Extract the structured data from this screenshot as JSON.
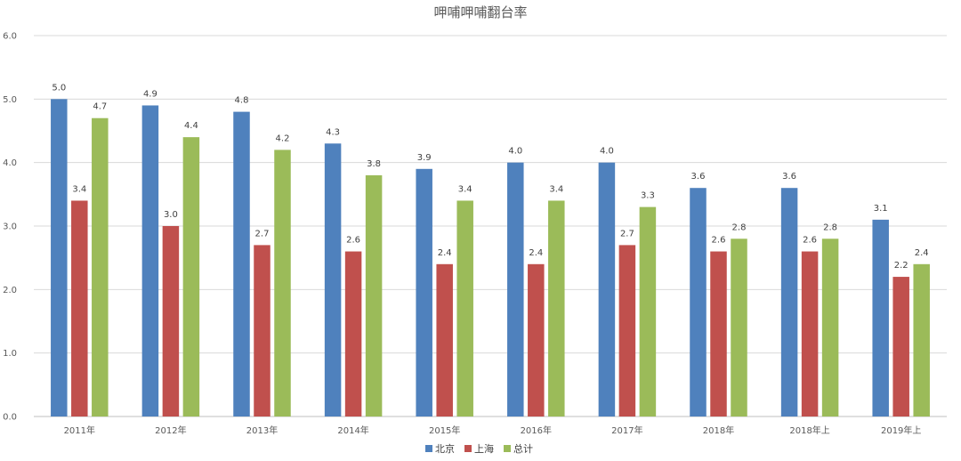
{
  "chart_data": {
    "type": "bar",
    "title": "呷哺呷哺翻台率",
    "categories": [
      "2011年",
      "2012年",
      "2013年",
      "2014年",
      "2015年",
      "2016年",
      "2017年",
      "2018年",
      "2018年上",
      "2019年上"
    ],
    "series": [
      {
        "name": "北京",
        "color": "#4f81bd",
        "values": [
          5.0,
          4.9,
          4.8,
          4.3,
          3.9,
          4.0,
          4.0,
          3.6,
          3.6,
          3.1
        ]
      },
      {
        "name": "上海",
        "color": "#c0504d",
        "values": [
          3.4,
          3.0,
          2.7,
          2.6,
          2.4,
          2.4,
          2.7,
          2.6,
          2.6,
          2.2
        ]
      },
      {
        "name": "总计",
        "color": "#9bbb59",
        "values": [
          4.7,
          4.4,
          4.2,
          3.8,
          3.4,
          3.4,
          3.3,
          2.8,
          2.8,
          2.4
        ]
      }
    ],
    "ylim": [
      0,
      6
    ],
    "yticks": [
      "0.0",
      "1.0",
      "2.0",
      "3.0",
      "4.0",
      "5.0",
      "6.0"
    ],
    "grid": true,
    "legend_position": "bottom-center",
    "data_labels": true
  }
}
